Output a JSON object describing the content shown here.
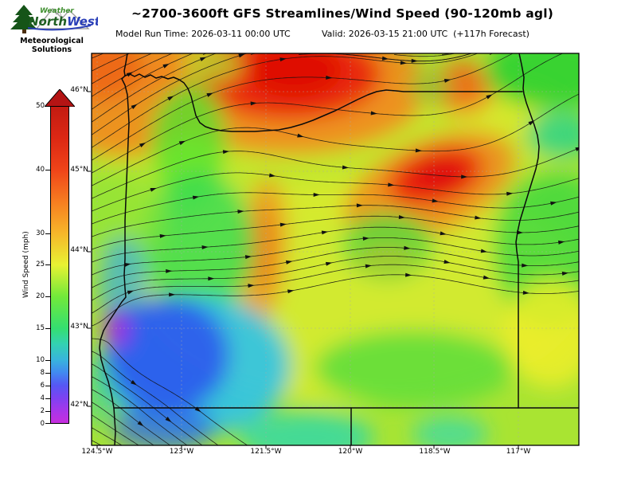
{
  "header": {
    "title": "~2700-3600ft GFS Streamlines/Wind Speed (90-120mb agl)",
    "model_run": "Model Run Time: 2026-03-11 00:00 UTC",
    "valid": "Valid: 2026-03-15 21:00 UTC  (+117h Forecast)"
  },
  "logo": {
    "weather": "Weather",
    "north": "North",
    "west": "West",
    "org_line1": "Meteorological",
    "org_line2": "Solutions"
  },
  "colorbar": {
    "label": "Wind Speed (mph)",
    "ticks": [
      "50",
      "40",
      "30",
      "25",
      "20",
      "15",
      "10",
      "8",
      "6",
      "4",
      "2",
      "0"
    ],
    "stops": [
      {
        "value": 0,
        "color": "#c62ede"
      },
      {
        "value": 4,
        "color": "#7d42f2"
      },
      {
        "value": 8,
        "color": "#418af0"
      },
      {
        "value": 10,
        "color": "#38b4dc"
      },
      {
        "value": 15,
        "color": "#35df70"
      },
      {
        "value": 20,
        "color": "#72e93a"
      },
      {
        "value": 25,
        "color": "#e8f233"
      },
      {
        "value": 30,
        "color": "#f6b62a"
      },
      {
        "value": 40,
        "color": "#ef4419"
      },
      {
        "value": 50,
        "color": "#c31b12"
      }
    ]
  },
  "map": {
    "lat_labels": [
      "46°N",
      "45°N",
      "44°N",
      "43°N",
      "42°N"
    ],
    "lon_labels": [
      "124.5°W",
      "123°W",
      "121.5°W",
      "120°W",
      "118.5°W",
      "117°W"
    ]
  }
}
